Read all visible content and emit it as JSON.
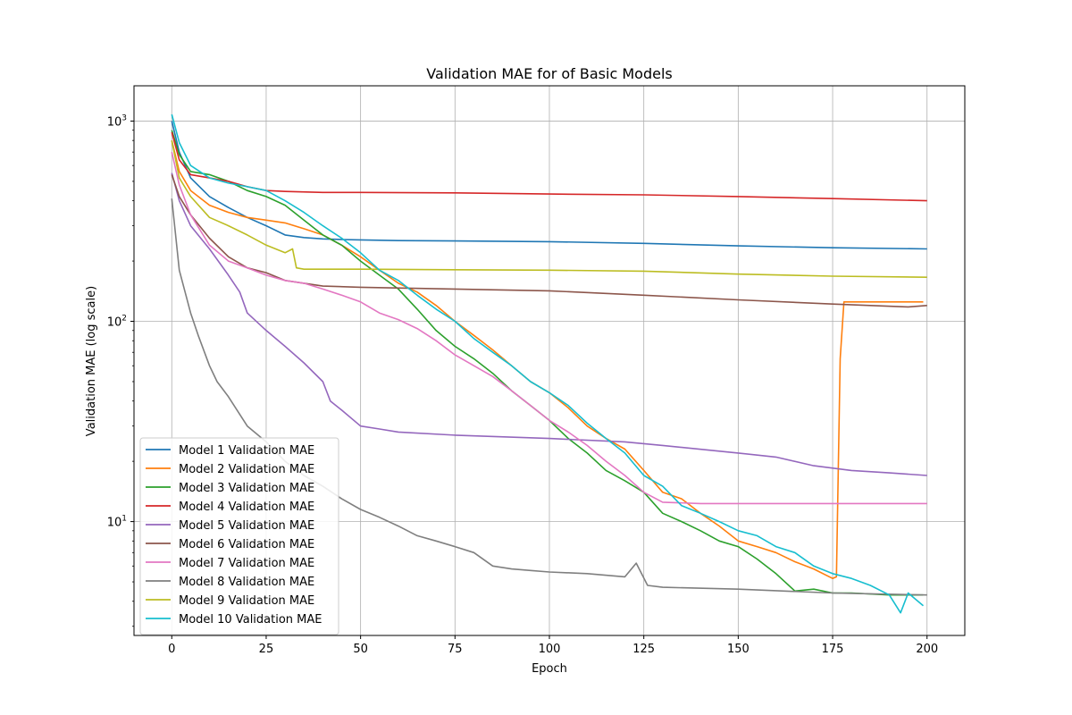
{
  "chart_data": {
    "type": "line",
    "title": "Validation MAE for of Basic Models",
    "xlabel": "Epoch",
    "ylabel": "Validation MAE (log scale)",
    "yscale": "log",
    "xlim": [
      -10,
      210
    ],
    "ylim": [
      2.7,
      1500
    ],
    "xticks": [
      0,
      25,
      50,
      75,
      100,
      125,
      150,
      175,
      200
    ],
    "yticks": [
      10,
      100,
      1000
    ],
    "grid": true,
    "legend_position": "lower-left",
    "series": [
      {
        "name": "Model 1 Validation MAE",
        "color": "#1f77b4",
        "points": [
          [
            0,
            1000
          ],
          [
            2,
            700
          ],
          [
            5,
            520
          ],
          [
            10,
            420
          ],
          [
            15,
            370
          ],
          [
            20,
            330
          ],
          [
            25,
            300
          ],
          [
            30,
            270
          ],
          [
            35,
            262
          ],
          [
            40,
            258
          ],
          [
            45,
            256
          ],
          [
            50,
            255
          ],
          [
            60,
            253
          ],
          [
            75,
            252
          ],
          [
            100,
            250
          ],
          [
            125,
            245
          ],
          [
            150,
            238
          ],
          [
            175,
            233
          ],
          [
            200,
            230
          ]
        ]
      },
      {
        "name": "Model 2 Validation MAE",
        "color": "#ff7f0e",
        "points": [
          [
            0,
            800
          ],
          [
            2,
            560
          ],
          [
            5,
            450
          ],
          [
            10,
            380
          ],
          [
            15,
            350
          ],
          [
            20,
            330
          ],
          [
            25,
            320
          ],
          [
            30,
            310
          ],
          [
            35,
            290
          ],
          [
            40,
            270
          ],
          [
            45,
            240
          ],
          [
            50,
            210
          ],
          [
            55,
            180
          ],
          [
            60,
            155
          ],
          [
            65,
            140
          ],
          [
            70,
            120
          ],
          [
            75,
            100
          ],
          [
            80,
            85
          ],
          [
            85,
            72
          ],
          [
            90,
            60
          ],
          [
            95,
            50
          ],
          [
            100,
            44
          ],
          [
            105,
            37
          ],
          [
            110,
            30
          ],
          [
            115,
            26
          ],
          [
            120,
            23
          ],
          [
            125,
            18
          ],
          [
            130,
            14
          ],
          [
            135,
            13
          ],
          [
            140,
            11
          ],
          [
            145,
            9.5
          ],
          [
            150,
            8
          ],
          [
            155,
            7.5
          ],
          [
            160,
            7
          ],
          [
            165,
            6.3
          ],
          [
            170,
            5.8
          ],
          [
            175,
            5.2
          ],
          [
            176,
            5.3
          ],
          [
            177,
            65
          ],
          [
            178,
            125
          ],
          [
            185,
            125
          ],
          [
            199,
            125
          ]
        ]
      },
      {
        "name": "Model 3 Validation MAE",
        "color": "#2ca02c",
        "points": [
          [
            0,
            900
          ],
          [
            2,
            680
          ],
          [
            5,
            560
          ],
          [
            10,
            540
          ],
          [
            15,
            500
          ],
          [
            20,
            450
          ],
          [
            25,
            420
          ],
          [
            30,
            380
          ],
          [
            35,
            320
          ],
          [
            40,
            270
          ],
          [
            45,
            240
          ],
          [
            50,
            200
          ],
          [
            55,
            170
          ],
          [
            60,
            145
          ],
          [
            65,
            115
          ],
          [
            70,
            90
          ],
          [
            75,
            75
          ],
          [
            80,
            65
          ],
          [
            85,
            55
          ],
          [
            90,
            45
          ],
          [
            95,
            38
          ],
          [
            100,
            32
          ],
          [
            105,
            26
          ],
          [
            110,
            22
          ],
          [
            115,
            18
          ],
          [
            120,
            16
          ],
          [
            125,
            14
          ],
          [
            130,
            11
          ],
          [
            135,
            10
          ],
          [
            140,
            9
          ],
          [
            145,
            8
          ],
          [
            150,
            7.5
          ],
          [
            155,
            6.5
          ],
          [
            160,
            5.5
          ],
          [
            165,
            4.5
          ],
          [
            170,
            4.6
          ],
          [
            175,
            4.4
          ],
          [
            180,
            4.4
          ],
          [
            190,
            4.3
          ],
          [
            199,
            4.3
          ]
        ]
      },
      {
        "name": "Model 4 Validation MAE",
        "color": "#d62728",
        "points": [
          [
            0,
            880
          ],
          [
            2,
            640
          ],
          [
            5,
            540
          ],
          [
            10,
            520
          ],
          [
            15,
            500
          ],
          [
            20,
            470
          ],
          [
            25,
            450
          ],
          [
            30,
            445
          ],
          [
            40,
            440
          ],
          [
            50,
            440
          ],
          [
            75,
            438
          ],
          [
            100,
            432
          ],
          [
            125,
            428
          ],
          [
            150,
            420
          ],
          [
            175,
            410
          ],
          [
            200,
            400
          ]
        ]
      },
      {
        "name": "Model 5 Validation MAE",
        "color": "#9467bd",
        "points": [
          [
            0,
            550
          ],
          [
            2,
            400
          ],
          [
            5,
            300
          ],
          [
            10,
            230
          ],
          [
            15,
            170
          ],
          [
            18,
            140
          ],
          [
            20,
            110
          ],
          [
            25,
            90
          ],
          [
            30,
            75
          ],
          [
            35,
            62
          ],
          [
            40,
            50
          ],
          [
            42,
            40
          ],
          [
            45,
            36
          ],
          [
            50,
            30
          ],
          [
            55,
            29
          ],
          [
            60,
            28
          ],
          [
            75,
            27
          ],
          [
            100,
            26
          ],
          [
            120,
            25
          ],
          [
            130,
            24
          ],
          [
            150,
            22
          ],
          [
            160,
            21
          ],
          [
            170,
            19
          ],
          [
            180,
            18
          ],
          [
            190,
            17.5
          ],
          [
            200,
            17
          ]
        ]
      },
      {
        "name": "Model 6 Validation MAE",
        "color": "#8c564b",
        "points": [
          [
            0,
            540
          ],
          [
            2,
            420
          ],
          [
            5,
            340
          ],
          [
            10,
            260
          ],
          [
            15,
            210
          ],
          [
            20,
            185
          ],
          [
            25,
            175
          ],
          [
            30,
            160
          ],
          [
            35,
            155
          ],
          [
            40,
            150
          ],
          [
            50,
            148
          ],
          [
            75,
            145
          ],
          [
            100,
            142
          ],
          [
            125,
            135
          ],
          [
            150,
            128
          ],
          [
            175,
            122
          ],
          [
            195,
            118
          ],
          [
            200,
            120
          ]
        ]
      },
      {
        "name": "Model 7 Validation MAE",
        "color": "#e377c2",
        "points": [
          [
            0,
            700
          ],
          [
            2,
            480
          ],
          [
            5,
            340
          ],
          [
            10,
            240
          ],
          [
            15,
            200
          ],
          [
            20,
            185
          ],
          [
            25,
            170
          ],
          [
            30,
            160
          ],
          [
            35,
            155
          ],
          [
            40,
            145
          ],
          [
            45,
            135
          ],
          [
            50,
            125
          ],
          [
            55,
            110
          ],
          [
            60,
            102
          ],
          [
            65,
            92
          ],
          [
            70,
            80
          ],
          [
            75,
            68
          ],
          [
            80,
            60
          ],
          [
            85,
            53
          ],
          [
            90,
            45
          ],
          [
            95,
            38
          ],
          [
            100,
            32
          ],
          [
            105,
            28
          ],
          [
            110,
            24
          ],
          [
            115,
            20
          ],
          [
            120,
            17
          ],
          [
            125,
            14
          ],
          [
            130,
            12.5
          ],
          [
            140,
            12.3
          ],
          [
            150,
            12.3
          ],
          [
            175,
            12.3
          ],
          [
            200,
            12.3
          ]
        ]
      },
      {
        "name": "Model 8 Validation MAE",
        "color": "#7f7f7f",
        "points": [
          [
            0,
            410
          ],
          [
            2,
            180
          ],
          [
            5,
            110
          ],
          [
            7,
            85
          ],
          [
            10,
            60
          ],
          [
            12,
            50
          ],
          [
            15,
            42
          ],
          [
            20,
            30
          ],
          [
            25,
            25
          ],
          [
            30,
            20
          ],
          [
            35,
            17
          ],
          [
            40,
            15
          ],
          [
            45,
            13
          ],
          [
            50,
            11.5
          ],
          [
            55,
            10.5
          ],
          [
            60,
            9.5
          ],
          [
            65,
            8.5
          ],
          [
            70,
            8
          ],
          [
            75,
            7.5
          ],
          [
            80,
            7
          ],
          [
            85,
            6
          ],
          [
            90,
            5.8
          ],
          [
            95,
            5.7
          ],
          [
            100,
            5.6
          ],
          [
            110,
            5.5
          ],
          [
            120,
            5.3
          ],
          [
            123,
            6.2
          ],
          [
            126,
            4.8
          ],
          [
            130,
            4.7
          ],
          [
            150,
            4.6
          ],
          [
            175,
            4.4
          ],
          [
            200,
            4.3
          ]
        ]
      },
      {
        "name": "Model 9 Validation MAE",
        "color": "#bcbd22",
        "points": [
          [
            0,
            800
          ],
          [
            2,
            520
          ],
          [
            5,
            420
          ],
          [
            10,
            330
          ],
          [
            15,
            300
          ],
          [
            20,
            270
          ],
          [
            25,
            240
          ],
          [
            30,
            220
          ],
          [
            32,
            230
          ],
          [
            33,
            185
          ],
          [
            35,
            182
          ],
          [
            40,
            182
          ],
          [
            50,
            182
          ],
          [
            75,
            181
          ],
          [
            100,
            180
          ],
          [
            125,
            178
          ],
          [
            150,
            172
          ],
          [
            175,
            168
          ],
          [
            200,
            166
          ]
        ]
      },
      {
        "name": "Model 10 Validation MAE",
        "color": "#17becf",
        "points": [
          [
            0,
            1080
          ],
          [
            2,
            780
          ],
          [
            5,
            600
          ],
          [
            10,
            520
          ],
          [
            15,
            490
          ],
          [
            20,
            470
          ],
          [
            25,
            450
          ],
          [
            30,
            400
          ],
          [
            35,
            350
          ],
          [
            40,
            300
          ],
          [
            45,
            260
          ],
          [
            50,
            220
          ],
          [
            55,
            180
          ],
          [
            60,
            160
          ],
          [
            65,
            135
          ],
          [
            70,
            115
          ],
          [
            75,
            100
          ],
          [
            80,
            82
          ],
          [
            85,
            70
          ],
          [
            90,
            60
          ],
          [
            95,
            50
          ],
          [
            100,
            44
          ],
          [
            105,
            38
          ],
          [
            110,
            31
          ],
          [
            115,
            26
          ],
          [
            120,
            22
          ],
          [
            125,
            17
          ],
          [
            130,
            15
          ],
          [
            135,
            12
          ],
          [
            140,
            11
          ],
          [
            145,
            10
          ],
          [
            150,
            9
          ],
          [
            155,
            8.5
          ],
          [
            160,
            7.5
          ],
          [
            165,
            7
          ],
          [
            170,
            6
          ],
          [
            175,
            5.5
          ],
          [
            180,
            5.2
          ],
          [
            185,
            4.8
          ],
          [
            190,
            4.3
          ],
          [
            193,
            3.5
          ],
          [
            195,
            4.4
          ],
          [
            199,
            3.8
          ]
        ]
      }
    ]
  }
}
